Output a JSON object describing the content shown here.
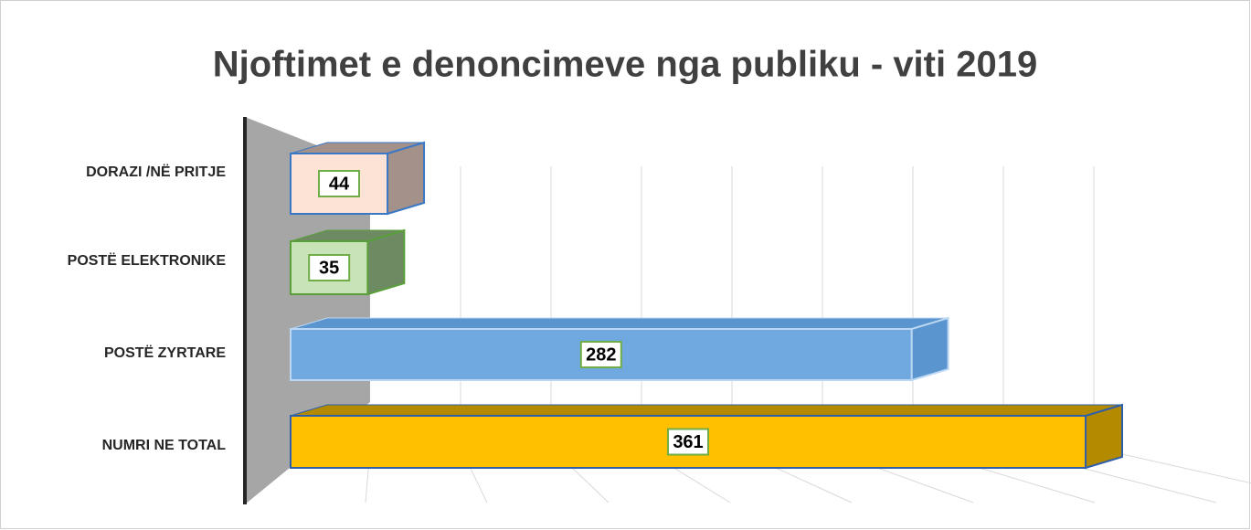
{
  "chart_data": {
    "type": "bar3d_horizontal",
    "title": "Njoftimet e denoncimeve nga publiku - viti 2019",
    "categories": [
      "DORAZI /NË PRITJE",
      "POSTË ELEKTRONIKE",
      "POSTË ZYRTARE",
      "NUMRI NE TOTAL"
    ],
    "values": [
      44,
      35,
      282,
      361
    ],
    "colors": [
      "#fde3d6",
      "#c9e3b8",
      "#6fa9e0",
      "#ffc000"
    ],
    "side_colors": [
      "#a4928a",
      "#6d8a62",
      "#5b95cf",
      "#b38a00"
    ],
    "edge_colors": [
      "#3a78c6",
      "#5aa03a",
      "#bcd7f2",
      "#2f5fa8"
    ],
    "xlim": [
      0,
      400
    ],
    "xticks": [
      0,
      50,
      100,
      150,
      200,
      250,
      300,
      350,
      400
    ],
    "grid": true
  }
}
